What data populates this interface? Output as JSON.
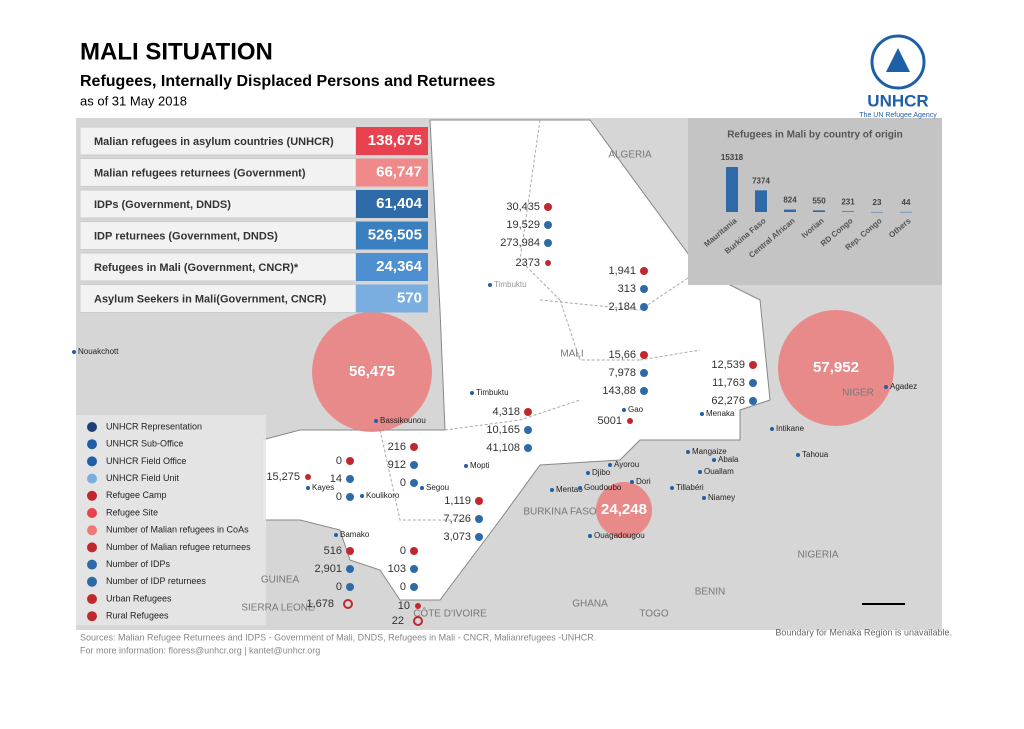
{
  "header": {
    "title": "MALI SITUATION",
    "subtitle": "Refugees, Internally Displaced Persons and Returnees",
    "date": "as of 31 May 2018"
  },
  "logo": {
    "name": "UNHCR",
    "tagline": "The UN Refugee Agency"
  },
  "stats": [
    {
      "label": "Malian refugees in asylum countries (UNHCR)",
      "value": "138,675"
    },
    {
      "label": "Malian refugees returnees (Government)",
      "value": "66,747"
    },
    {
      "label": "IDPs (Government, DNDS)",
      "value": "61,404"
    },
    {
      "label": "IDP returnees (Government, DNDS)",
      "value": "526,505"
    },
    {
      "label": "Refugees in Mali (Government,  CNCR)*",
      "value": "24,364"
    },
    {
      "label": "Asylum Seekers in Mali(Government, CNCR)",
      "value": "570"
    }
  ],
  "chart_data": {
    "type": "bar",
    "title": "Refugees in Mali by country of origin",
    "categories": [
      "Mauritania",
      "Burkina Faso",
      "Central African",
      "Ivorian",
      "RD Congo",
      "Rep. Congo",
      "Others"
    ],
    "values": [
      15318,
      7374,
      824,
      550,
      231,
      23,
      44
    ],
    "color": "#2f6aa8"
  },
  "countries": [
    "ALGERIA",
    "MALI",
    "NIGER",
    "BURKINA FASO",
    "NIGERIA",
    "GUINEA",
    "SIERRA LEONE",
    "BENIN",
    "GHANA",
    "TOGO",
    "CÔTE D'IVOIRE"
  ],
  "places": [
    "Nouakchott",
    "Timbuktu",
    "Bassikounou",
    "Mopti",
    "Gao",
    "Menaka",
    "Kayes",
    "Koulikoro",
    "Segou",
    "Bamako",
    "Tillabéri",
    "Niamey",
    "Ouagadougou",
    "Tahoua",
    "Intikane",
    "Agadez",
    "Dori",
    "Djibo",
    "Mentao",
    "Goudoubo",
    "Ayorou",
    "Ouallam",
    "Abala",
    "Mangaize",
    "Timbuktu"
  ],
  "coa_refugees": [
    "56,475",
    "57,952",
    "24,248"
  ],
  "regions": [
    {
      "returnees": "30,435",
      "idps": "19,529",
      "idp_returnees": "273,984"
    },
    {
      "returnees": "1,941",
      "idps": "313",
      "idp_returnees": "2,184"
    },
    {
      "returnees": "15,66",
      "idps": "7,978",
      "idp_returnees": "143,88"
    },
    {
      "returnees": "12,539",
      "idps": "11,763",
      "idp_returnees": "62,276"
    },
    {
      "returnees": "4,318",
      "idps": "10,165",
      "idp_returnees": "41,108"
    },
    {
      "returnees": "0",
      "idps": "14",
      "idp_returnees": "0"
    },
    {
      "returnees": "216",
      "idps": "912",
      "idp_returnees": "0"
    },
    {
      "returnees": "1,119",
      "idps": "7,726",
      "idp_returnees": "3,073"
    },
    {
      "returnees": "516",
      "idps": "2,901",
      "idp_returnees": "0"
    },
    {
      "returnees": "0",
      "idps": "103",
      "idp_returnees": "0"
    }
  ],
  "rural_refugees": [
    "2373",
    "5001",
    "15,275",
    "10"
  ],
  "urban_refugees": [
    "1,678",
    "22"
  ],
  "legend": [
    "UNHCR Representation",
    "UNHCR Sub-Office",
    "UNHCR Field Office",
    "UNHCR Field Unit",
    "Refugee Camp",
    "Refugee Site",
    "Number of Malian refugees in CoAs",
    "Number of Malian refugee returnees",
    "Number of IDPs",
    "Number of IDP returnees",
    "Urban Refugees",
    "Rural Refugees"
  ],
  "footer": {
    "sources": "Sources:  Malian Refugee Returnees and IDPS - Government of Mali, DNDS, Refugees in Mali - CNCR, Malianrefugees -UNHCR.",
    "contact": "For more information: floress@unhcr.org | kantet@unhcr.org",
    "note": "Boundary for Menaka Region is unavailable."
  }
}
